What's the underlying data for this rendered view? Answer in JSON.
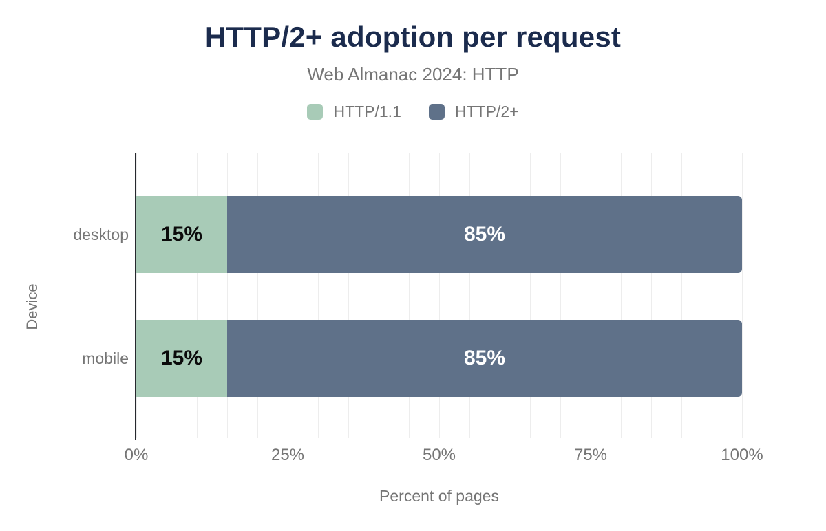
{
  "page": {
    "background": "#ffffff"
  },
  "colors": {
    "title": "#1b2b4d",
    "text_muted": "#757575",
    "axis_line": "#26282e"
  },
  "chart_data": {
    "type": "bar",
    "orientation": "horizontal",
    "stacked": true,
    "title": "HTTP/2+ adoption per request",
    "subtitle": "Web Almanac 2024: HTTP",
    "xlabel": "Percent of pages",
    "ylabel": "Device",
    "categories": [
      "desktop",
      "mobile"
    ],
    "series": [
      {
        "name": "HTTP/1.1",
        "color": "#a8cbb7",
        "value_label_color": "#0b0b0b",
        "values": [
          15,
          15
        ]
      },
      {
        "name": "HTTP/2+",
        "color": "#5f7189",
        "value_label_color": "#ffffff",
        "values": [
          85,
          85
        ]
      }
    ],
    "value_suffix": "%",
    "x_ticks": [
      "0%",
      "25%",
      "50%",
      "75%",
      "100%"
    ],
    "xlim": [
      0,
      100
    ],
    "grid": {
      "minor_step_percent": 5,
      "color": "#ededed",
      "axis": "x"
    },
    "legend_position": "top"
  }
}
